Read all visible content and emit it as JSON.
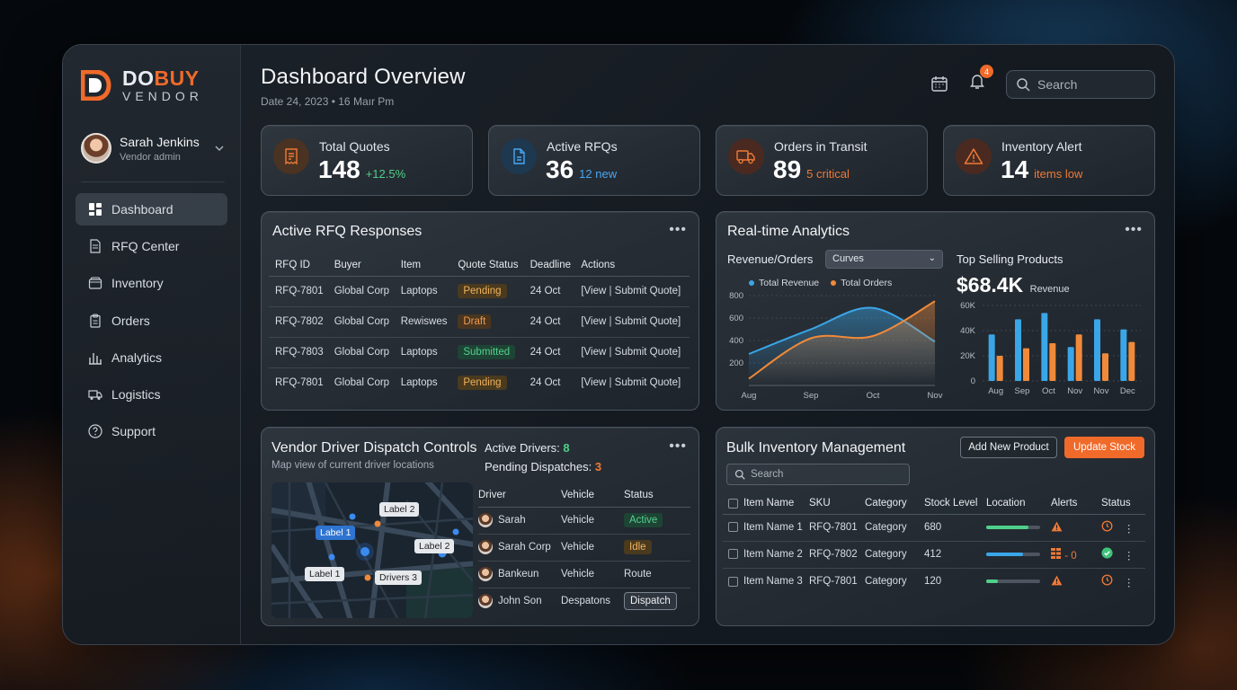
{
  "brand": {
    "name_part1": "DO",
    "name_part2": "BUY",
    "subtitle": "VENDOR"
  },
  "user": {
    "name": "Sarah Jenkins",
    "role": "Vendor admin"
  },
  "nav": [
    {
      "label": "Dashboard",
      "icon": "grid-icon",
      "active": true
    },
    {
      "label": "RFQ Center",
      "icon": "document-icon"
    },
    {
      "label": "Inventory",
      "icon": "box-icon"
    },
    {
      "label": "Orders",
      "icon": "clipboard-icon"
    },
    {
      "label": "Analytics",
      "icon": "bar-chart-icon"
    },
    {
      "label": "Logistics",
      "icon": "truck-icon"
    },
    {
      "label": "Support",
      "icon": "help-icon"
    }
  ],
  "header": {
    "title": "Dashboard Overview",
    "date": "Date 24, 2023 • 16 Maır Pm",
    "notifications": "4",
    "search_placeholder": "Search"
  },
  "kpis": [
    {
      "label": "Total Quotes",
      "value": "148",
      "sub": "+12.5%",
      "sub_color": "#4fd08a",
      "icon": "invoice-icon",
      "icon_bg": "#4a3322"
    },
    {
      "label": "Active RFQs",
      "value": "36",
      "sub": "12 new",
      "sub_color": "#4aa6f0",
      "icon": "file-icon",
      "icon_bg": "#1e3850"
    },
    {
      "label": "Orders in Transit",
      "value": "89",
      "sub": "5 critical",
      "sub_color": "#f07a35",
      "icon": "truck-icon",
      "icon_bg": "#4a2a20"
    },
    {
      "label": "Inventory Alert",
      "value": "14",
      "sub": "items low",
      "sub_color": "#f07a35",
      "icon": "warning-icon",
      "icon_bg": "#4a2a20"
    }
  ],
  "rfq": {
    "title": "Active RFQ Responses",
    "headers": [
      "RFQ ID",
      "Buyer",
      "Item",
      "Quote Status",
      "Deadline",
      "Actions"
    ],
    "rows": [
      {
        "id": "RFQ-7801",
        "buyer": "Global Corp",
        "item": "Laptops",
        "status": "Pending",
        "deadline": "24 Oct",
        "view": "[View",
        "submit": "Submit Quote]"
      },
      {
        "id": "RFQ-7802",
        "buyer": "Global Corp",
        "item": "Rewiswes",
        "status": "Draft",
        "deadline": "24 Oct",
        "view": "[View",
        "submit": "Submit Quote]"
      },
      {
        "id": "RFQ-7803",
        "buyer": "Global Corp",
        "item": "Laptops",
        "status": "Submitted",
        "deadline": "24 Oct",
        "view": "[View",
        "submit": "Submit Quote]"
      },
      {
        "id": "RFQ-7801",
        "buyer": "Global Corp",
        "item": "Laptops",
        "status": "Pending",
        "deadline": "24 Oct",
        "view": "[View",
        "submit": "Submit Quote]"
      }
    ]
  },
  "analytics": {
    "title": "Real-time Analytics",
    "subtitle": "Revenue/Orders",
    "select_value": "Curves",
    "legend": [
      "Total Revenue",
      "Total Orders"
    ],
    "top_selling_title": "Top Selling Products",
    "top_selling_value": "$68.4K",
    "top_selling_unit": "Revenue"
  },
  "chart_data": [
    {
      "type": "area",
      "title": "Revenue/Orders",
      "x": [
        "Aug",
        "Sep",
        "Oct",
        "Nov"
      ],
      "ylim": [
        0,
        800
      ],
      "yticks": [
        200,
        400,
        600,
        800
      ],
      "series": [
        {
          "name": "Total Revenue",
          "color": "#3aa6e8",
          "values": [
            280,
            500,
            690,
            390
          ]
        },
        {
          "name": "Total Orders",
          "color": "#f08a3a",
          "values": [
            60,
            420,
            440,
            750
          ]
        }
      ],
      "grid": true
    },
    {
      "type": "bar",
      "title": "Top Selling Products",
      "categories": [
        "Aug",
        "Sep",
        "Oct",
        "Nov",
        "Nov",
        "Dec"
      ],
      "ylim": [
        0,
        60000
      ],
      "yticks": [
        "0",
        "20K",
        "40K",
        "60K"
      ],
      "series": [
        {
          "color": "#3aa6e8",
          "values": [
            37000,
            49000,
            54000,
            27000,
            49000,
            41000
          ]
        },
        {
          "color": "#f08a3a",
          "values": [
            20000,
            26000,
            30000,
            37000,
            22000,
            31000
          ]
        }
      ],
      "grid": true
    }
  ],
  "dispatch": {
    "title": "Vendor Driver Dispatch Controls",
    "subtitle": "Map view of current driver locations",
    "active_label": "Active Drivers:",
    "active_value": "8",
    "pending_label": "Pending Dispatches:",
    "pending_value": "3",
    "map_labels": [
      "Label 2",
      "Label 1",
      "Label 2",
      "Label 1",
      "Drivers 3"
    ],
    "headers": [
      "Driver",
      "Vehicle",
      "Status"
    ],
    "rows": [
      {
        "driver": "Sarah",
        "vehicle": "Vehicle",
        "status": "Active"
      },
      {
        "driver": "Sarah Corp",
        "vehicle": "Vehicle",
        "status": "Idle"
      },
      {
        "driver": "Bankeun",
        "vehicle": "Vehicle",
        "status": "Route"
      },
      {
        "driver": "John Son",
        "vehicle": "Despatons",
        "status": "Dispatch"
      }
    ]
  },
  "inventory": {
    "title": "Bulk Inventory Management",
    "add_label": "Add New Product",
    "update_label": "Update Stock",
    "search_placeholder": "Search",
    "headers": [
      "Item Name",
      "SKU",
      "Category",
      "Stock Level",
      "Location",
      "Alerts",
      "Status"
    ],
    "rows": [
      {
        "name": "Item Name 1",
        "sku": "RFQ-7801",
        "category": "Category",
        "stock": "680",
        "level": 0.78,
        "level_color": "#4fd08a",
        "alert": "warning-icon",
        "alert_text": "",
        "status": "clock-icon"
      },
      {
        "name": "Item Name 2",
        "sku": "RFQ-7802",
        "category": "Category",
        "stock": "412",
        "level": 0.68,
        "level_color": "#3aa6e8",
        "alert": "stack-icon",
        "alert_text": "- 0",
        "status": "check-icon"
      },
      {
        "name": "Item Name 3",
        "sku": "RFQ-7801",
        "category": "Category",
        "stock": "120",
        "level": 0.22,
        "level_color": "#4fd08a",
        "alert": "warning-icon",
        "alert_text": "",
        "status": "clock-icon"
      }
    ]
  }
}
